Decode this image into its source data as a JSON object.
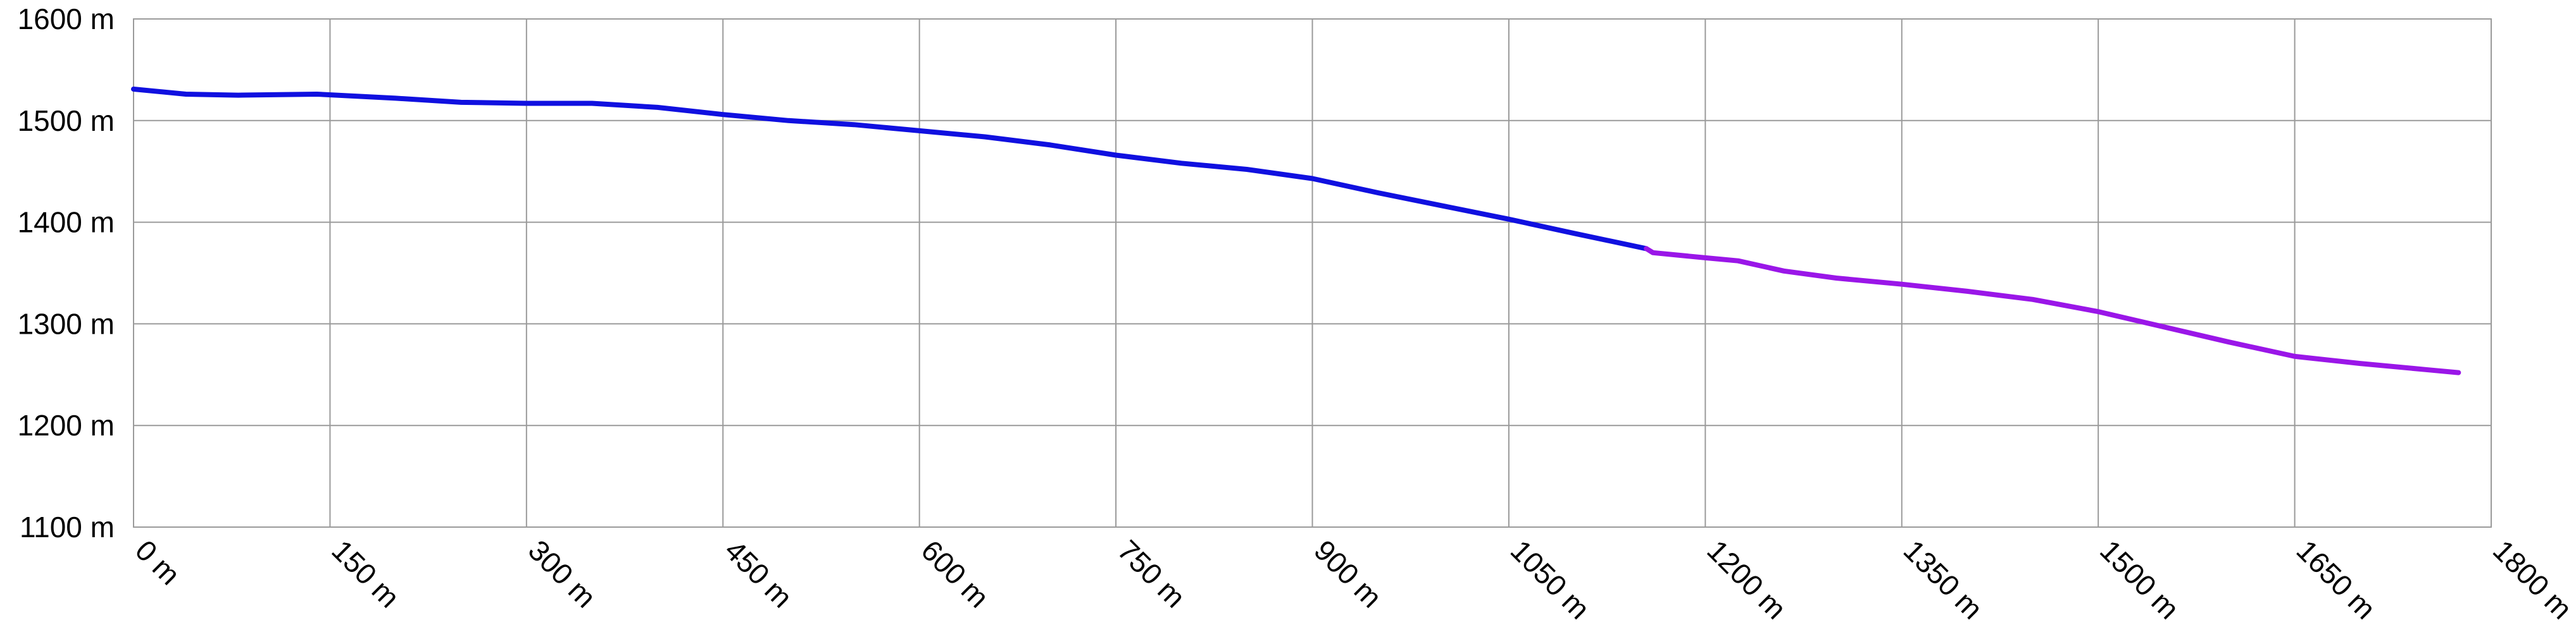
{
  "chart_data": {
    "type": "line",
    "title": "",
    "xlabel": "",
    "ylabel": "",
    "xlim": [
      0,
      1800
    ],
    "ylim": [
      1100,
      1600
    ],
    "grid": true,
    "x_ticks": [
      0,
      150,
      300,
      450,
      600,
      750,
      900,
      1050,
      1200,
      1350,
      1500,
      1650,
      1800
    ],
    "x_tick_labels": [
      "0 m",
      "150 m",
      "300 m",
      "450 m",
      "600 m",
      "750 m",
      "900 m",
      "1050 m",
      "1200 m",
      "1350 m",
      "1500 m",
      "1650 m",
      "1800 m"
    ],
    "y_ticks": [
      1100,
      1200,
      1300,
      1400,
      1500,
      1600
    ],
    "y_tick_labels": [
      "1100 m",
      "1200 m",
      "1300 m",
      "1400 m",
      "1500 m",
      "1600 m"
    ],
    "series": [
      {
        "color": "#1010e0",
        "points": [
          [
            0,
            1531
          ],
          [
            40,
            1526
          ],
          [
            80,
            1525
          ],
          [
            140,
            1526
          ],
          [
            200,
            1522
          ],
          [
            250,
            1518
          ],
          [
            300,
            1517
          ],
          [
            350,
            1517
          ],
          [
            400,
            1513
          ],
          [
            450,
            1506
          ],
          [
            500,
            1500
          ],
          [
            550,
            1496
          ],
          [
            600,
            1490
          ],
          [
            650,
            1484
          ],
          [
            700,
            1476
          ],
          [
            750,
            1466
          ],
          [
            800,
            1458
          ],
          [
            850,
            1452
          ],
          [
            900,
            1443
          ],
          [
            950,
            1429
          ],
          [
            1000,
            1416
          ],
          [
            1050,
            1403
          ],
          [
            1100,
            1389
          ],
          [
            1155,
            1374
          ]
        ]
      },
      {
        "color": "#9a16e8",
        "points": [
          [
            1155,
            1374
          ],
          [
            1160,
            1370
          ],
          [
            1200,
            1365
          ],
          [
            1225,
            1362
          ],
          [
            1260,
            1352
          ],
          [
            1300,
            1345
          ],
          [
            1350,
            1339
          ],
          [
            1400,
            1332
          ],
          [
            1450,
            1324
          ],
          [
            1500,
            1312
          ],
          [
            1550,
            1297
          ],
          [
            1600,
            1282
          ],
          [
            1650,
            1268
          ],
          [
            1700,
            1261
          ],
          [
            1750,
            1255
          ],
          [
            1775,
            1252
          ]
        ]
      }
    ]
  }
}
